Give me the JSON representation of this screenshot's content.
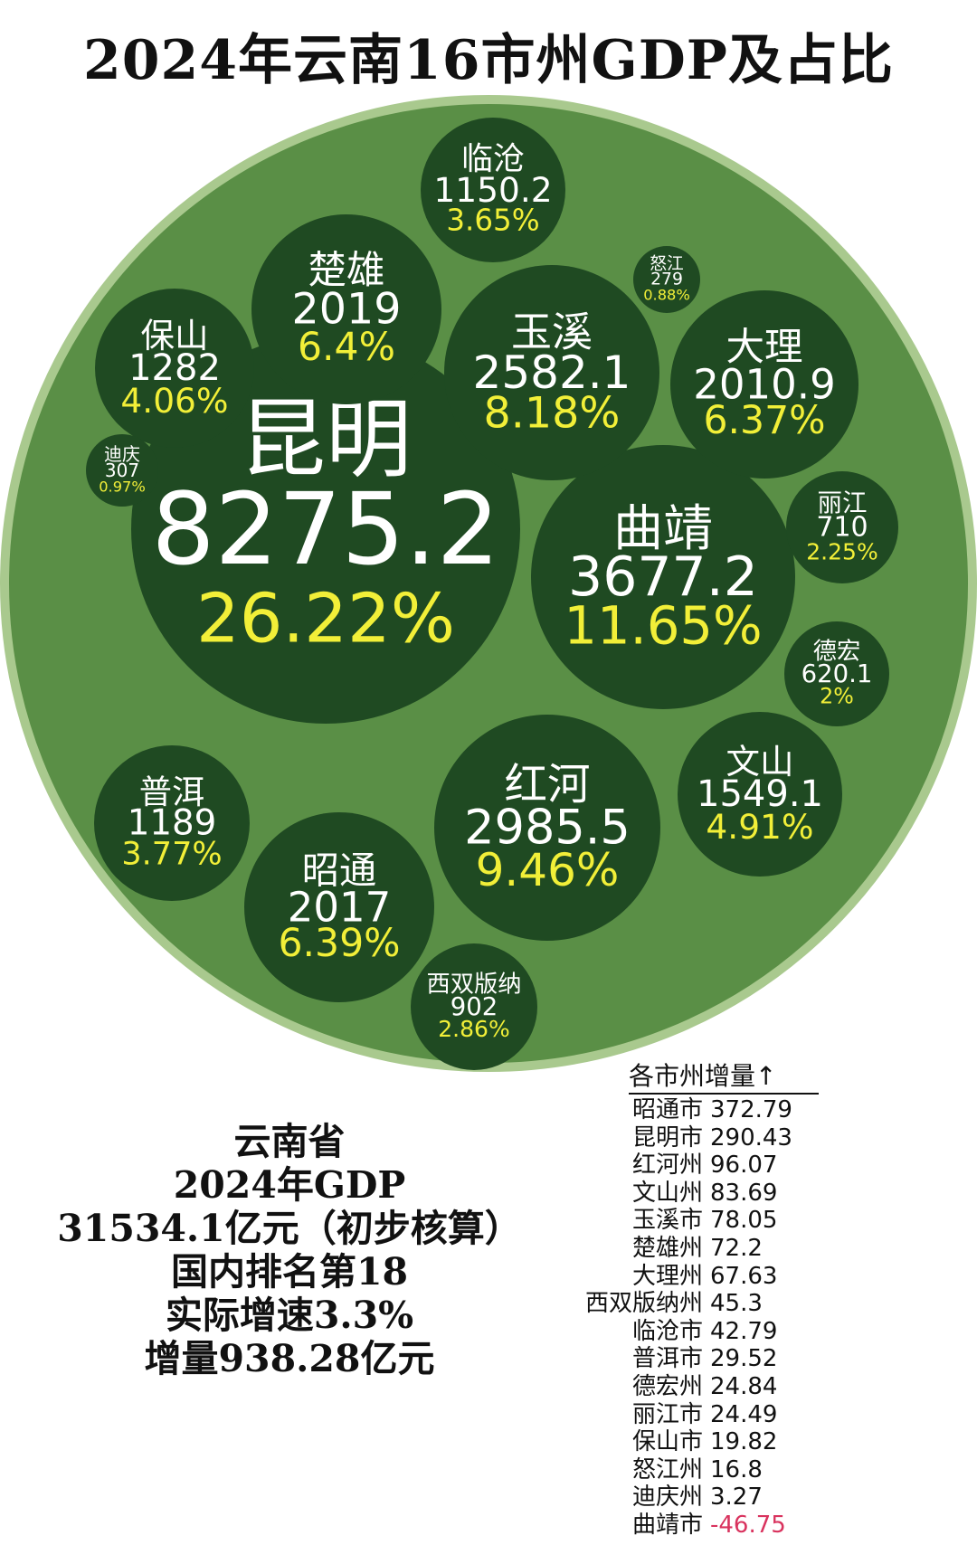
{
  "title": "2024年云南16市州GDP及占比",
  "colors": {
    "outer_fill": "#5a8f46",
    "outer_ring": "#a9c98e",
    "bubble_fill": "#1f4a22",
    "value_text": "#ffffff",
    "share_text": "#f2ef38",
    "negative": "#d9335e"
  },
  "chart_data": {
    "type": "bubble",
    "title": "2024年云南16市州GDP及占比",
    "series": [
      {
        "name": "昆明",
        "gdp": "8275.2",
        "share": "26.22%"
      },
      {
        "name": "曲靖",
        "gdp": "3677.2",
        "share": "11.65%"
      },
      {
        "name": "红河",
        "gdp": "2985.5",
        "share": "9.46%"
      },
      {
        "name": "玉溪",
        "gdp": "2582.1",
        "share": "8.18%"
      },
      {
        "name": "楚雄",
        "gdp": "2019",
        "share": "6.4%"
      },
      {
        "name": "昭通",
        "gdp": "2017",
        "share": "6.39%"
      },
      {
        "name": "大理",
        "gdp": "2010.9",
        "share": "6.37%"
      },
      {
        "name": "文山",
        "gdp": "1549.1",
        "share": "4.91%"
      },
      {
        "name": "保山",
        "gdp": "1282",
        "share": "4.06%"
      },
      {
        "name": "普洱",
        "gdp": "1189",
        "share": "3.77%"
      },
      {
        "name": "临沧",
        "gdp": "1150.2",
        "share": "3.65%"
      },
      {
        "name": "西双版纳",
        "gdp": "902",
        "share": "2.86%"
      },
      {
        "name": "丽江",
        "gdp": "710",
        "share": "2.25%"
      },
      {
        "name": "德宏",
        "gdp": "620.1",
        "share": "2%"
      },
      {
        "name": "迪庆",
        "gdp": "307",
        "share": "0.97%"
      },
      {
        "name": "怒江",
        "gdp": "279",
        "share": "0.88%"
      }
    ]
  },
  "summary": {
    "line1": "云南省",
    "line2": "2024年GDP",
    "line3": "31534.1亿元（初步核算）",
    "line4": "国内排名第18",
    "line5": "实际增速3.3%",
    "line6": "增量938.28亿元"
  },
  "increments": {
    "header": "各市州增量↑",
    "rows": [
      {
        "name": "昭通市",
        "value": "372.79"
      },
      {
        "name": "昆明市",
        "value": "290.43"
      },
      {
        "name": "红河州",
        "value": "96.07"
      },
      {
        "name": "文山州",
        "value": "83.69"
      },
      {
        "name": "玉溪市",
        "value": "78.05"
      },
      {
        "name": "楚雄州",
        "value": "72.2"
      },
      {
        "name": "大理州",
        "value": "67.63"
      },
      {
        "name": "西双版纳州",
        "value": "45.3"
      },
      {
        "name": "临沧市",
        "value": "42.79"
      },
      {
        "name": "普洱市",
        "value": "29.52"
      },
      {
        "name": "德宏州",
        "value": "24.84"
      },
      {
        "name": "丽江市",
        "value": "24.49"
      },
      {
        "name": "保山市",
        "value": "19.82"
      },
      {
        "name": "怒江州",
        "value": "16.8"
      },
      {
        "name": "迪庆州",
        "value": "3.27"
      },
      {
        "name": "曲靖市",
        "value": "-46.75"
      }
    ]
  }
}
